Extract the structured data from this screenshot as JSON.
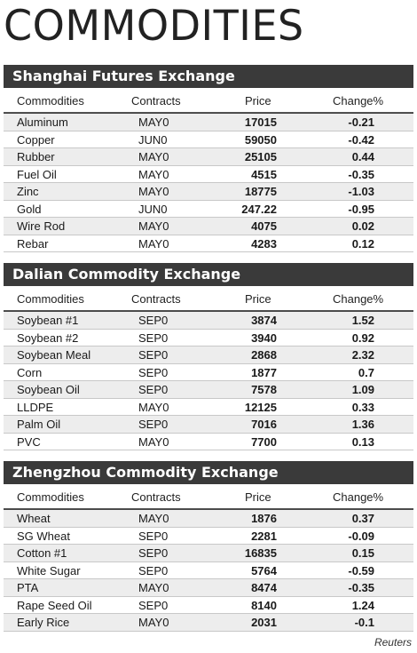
{
  "title": "COMMODITIES",
  "columns": {
    "commodities": "Commodities",
    "contracts": "Contracts",
    "price": "Price",
    "change": "Change%"
  },
  "sections": [
    {
      "name": "Shanghai Futures Exchange",
      "rows": [
        {
          "commodity": "Aluminum",
          "contract": "MAY0",
          "price": "17015",
          "change": "-0.21"
        },
        {
          "commodity": "Copper",
          "contract": "JUN0",
          "price": "59050",
          "change": "-0.42"
        },
        {
          "commodity": "Rubber",
          "contract": "MAY0",
          "price": "25105",
          "change": "0.44"
        },
        {
          "commodity": "Fuel Oil",
          "contract": "MAY0",
          "price": "4515",
          "change": "-0.35"
        },
        {
          "commodity": "Zinc",
          "contract": "MAY0",
          "price": "18775",
          "change": "-1.03"
        },
        {
          "commodity": "Gold",
          "contract": "JUN0",
          "price": "247.22",
          "change": "-0.95"
        },
        {
          "commodity": "Wire Rod",
          "contract": "MAY0",
          "price": "4075",
          "change": "0.02"
        },
        {
          "commodity": "Rebar",
          "contract": "MAY0",
          "price": "4283",
          "change": "0.12"
        }
      ]
    },
    {
      "name": "Dalian Commodity Exchange",
      "rows": [
        {
          "commodity": "Soybean #1",
          "contract": "SEP0",
          "price": "3874",
          "change": "1.52"
        },
        {
          "commodity": "Soybean #2",
          "contract": "SEP0",
          "price": "3940",
          "change": "0.92"
        },
        {
          "commodity": "Soybean Meal",
          "contract": "SEP0",
          "price": "2868",
          "change": "2.32"
        },
        {
          "commodity": "Corn",
          "contract": "SEP0",
          "price": "1877",
          "change": "0.7"
        },
        {
          "commodity": "Soybean Oil",
          "contract": "SEP0",
          "price": "7578",
          "change": "1.09"
        },
        {
          "commodity": "LLDPE",
          "contract": "MAY0",
          "price": "12125",
          "change": "0.33"
        },
        {
          "commodity": "Palm Oil",
          "contract": "SEP0",
          "price": "7016",
          "change": "1.36"
        },
        {
          "commodity": "PVC",
          "contract": "MAY0",
          "price": "7700",
          "change": "0.13"
        }
      ]
    },
    {
      "name": "Zhengzhou Commodity Exchange",
      "rows": [
        {
          "commodity": "Wheat",
          "contract": "MAY0",
          "price": "1876",
          "change": "0.37"
        },
        {
          "commodity": "SG Wheat",
          "contract": "SEP0",
          "price": "2281",
          "change": "-0.09"
        },
        {
          "commodity": "Cotton #1",
          "contract": "SEP0",
          "price": "16835",
          "change": "0.15"
        },
        {
          "commodity": "White Sugar",
          "contract": "SEP0",
          "price": "5764",
          "change": "-0.59"
        },
        {
          "commodity": "PTA",
          "contract": "MAY0",
          "price": "8474",
          "change": "-0.35"
        },
        {
          "commodity": "Rape Seed Oil",
          "contract": "SEP0",
          "price": "8140",
          "change": "1.24"
        },
        {
          "commodity": "Early Rice",
          "contract": "MAY0",
          "price": "2031",
          "change": "-0.1"
        }
      ]
    }
  ],
  "source": "Reuters"
}
